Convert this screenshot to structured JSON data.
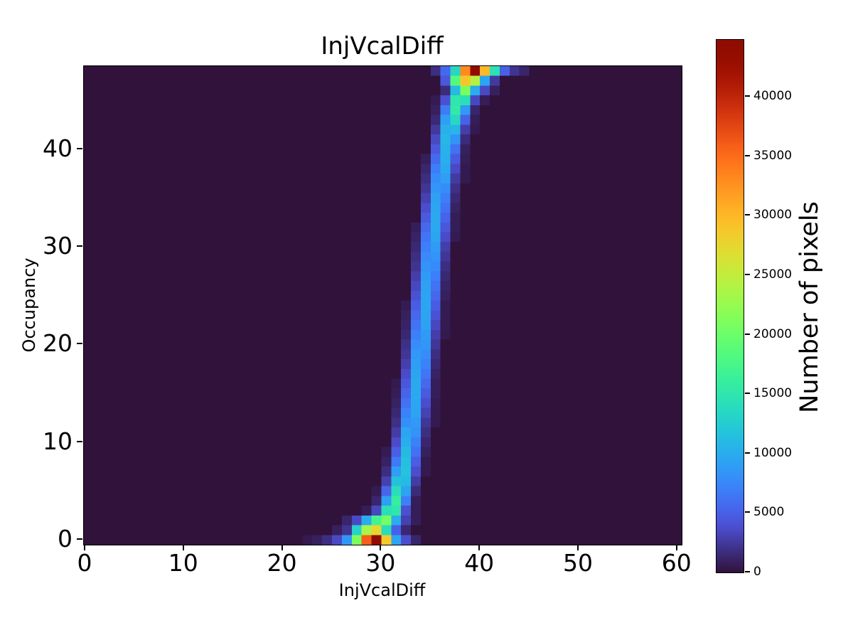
{
  "chart_data": {
    "type": "heatmap",
    "title": "InjVcalDiff",
    "xlabel": "InjVcalDiff",
    "ylabel": "Occupancy",
    "colorbar_label": "Number of pixels",
    "colormap": "turbo",
    "background_color": "#30123b",
    "vmin": 0,
    "vmax": 44800,
    "x_range": [
      0,
      60.5
    ],
    "y_range": [
      -0.5,
      48.5
    ],
    "x_ticks": [
      0,
      10,
      20,
      30,
      40,
      50,
      60
    ],
    "y_ticks": [
      0,
      10,
      20,
      30,
      40
    ],
    "colorbar_ticks": [
      0,
      5000,
      10000,
      15000,
      20000,
      25000,
      30000,
      35000,
      40000
    ],
    "rows": [
      {
        "y": 0,
        "cells": [
          [
            22,
            500
          ],
          [
            23,
            900
          ],
          [
            24,
            1800
          ],
          [
            25,
            3500
          ],
          [
            26,
            8500
          ],
          [
            27,
            21000
          ],
          [
            28,
            35800
          ],
          [
            29,
            44800
          ],
          [
            30,
            28700
          ],
          [
            31,
            9500
          ],
          [
            32,
            3800
          ],
          [
            33,
            1200
          ]
        ]
      },
      {
        "y": 1,
        "cells": [
          [
            25,
            900
          ],
          [
            26,
            2200
          ],
          [
            27,
            13000
          ],
          [
            28,
            23500
          ],
          [
            29,
            27500
          ],
          [
            30,
            14000
          ],
          [
            31,
            5000
          ],
          [
            32,
            1400
          ]
        ]
      },
      {
        "y": 2,
        "cells": [
          [
            26,
            1200
          ],
          [
            27,
            3500
          ],
          [
            28,
            10000
          ],
          [
            29,
            17000
          ],
          [
            30,
            20500
          ],
          [
            31,
            10000
          ],
          [
            32,
            3000
          ],
          [
            33,
            800
          ]
        ]
      },
      {
        "y": 3,
        "cells": [
          [
            28,
            700
          ],
          [
            29,
            3400
          ],
          [
            30,
            14300
          ],
          [
            31,
            15100
          ],
          [
            32,
            4000
          ],
          [
            33,
            700
          ]
        ]
      },
      {
        "y": 4,
        "cells": [
          [
            29,
            1300
          ],
          [
            30,
            9000
          ],
          [
            31,
            15900
          ],
          [
            32,
            7000
          ],
          [
            33,
            800
          ]
        ]
      },
      {
        "y": 5,
        "cells": [
          [
            29,
            600
          ],
          [
            30,
            5300
          ],
          [
            31,
            14100
          ],
          [
            32,
            9400
          ],
          [
            33,
            1600
          ]
        ]
      },
      {
        "y": 6,
        "cells": [
          [
            30,
            3000
          ],
          [
            31,
            11600
          ],
          [
            32,
            11100
          ],
          [
            33,
            2700
          ]
        ]
      },
      {
        "y": 7,
        "cells": [
          [
            30,
            1700
          ],
          [
            31,
            9000
          ],
          [
            32,
            11700
          ],
          [
            33,
            3800
          ],
          [
            34,
            500
          ]
        ]
      },
      {
        "y": 8,
        "cells": [
          [
            30,
            1000
          ],
          [
            31,
            6600
          ],
          [
            32,
            11400
          ],
          [
            33,
            4900
          ],
          [
            34,
            500
          ]
        ]
      },
      {
        "y": 9,
        "cells": [
          [
            30,
            600
          ],
          [
            31,
            4900
          ],
          [
            32,
            11000
          ],
          [
            33,
            6100
          ],
          [
            34,
            900
          ]
        ]
      },
      {
        "y": 10,
        "cells": [
          [
            31,
            3600
          ],
          [
            32,
            10100
          ],
          [
            33,
            7100
          ],
          [
            34,
            1300
          ]
        ]
      },
      {
        "y": 11,
        "cells": [
          [
            31,
            2700
          ],
          [
            32,
            9400
          ],
          [
            33,
            8200
          ],
          [
            34,
            1800
          ]
        ]
      },
      {
        "y": 12,
        "cells": [
          [
            31,
            1900
          ],
          [
            32,
            8100
          ],
          [
            33,
            8700
          ],
          [
            34,
            2300
          ],
          [
            35,
            500
          ]
        ]
      },
      {
        "y": 13,
        "cells": [
          [
            31,
            1400
          ],
          [
            32,
            7200
          ],
          [
            33,
            9400
          ],
          [
            34,
            3100
          ],
          [
            35,
            500
          ]
        ]
      },
      {
        "y": 14,
        "cells": [
          [
            31,
            1000
          ],
          [
            32,
            6100
          ],
          [
            33,
            9600
          ],
          [
            34,
            3800
          ],
          [
            35,
            600
          ]
        ]
      },
      {
        "y": 15,
        "cells": [
          [
            31,
            700
          ],
          [
            32,
            5200
          ],
          [
            33,
            9800
          ],
          [
            34,
            4600
          ],
          [
            35,
            800
          ]
        ]
      },
      {
        "y": 16,
        "cells": [
          [
            31,
            500
          ],
          [
            32,
            4400
          ],
          [
            33,
            9800
          ],
          [
            34,
            5500
          ],
          [
            35,
            800
          ]
        ]
      },
      {
        "y": 17,
        "cells": [
          [
            32,
            3600
          ],
          [
            33,
            9500
          ],
          [
            34,
            6400
          ],
          [
            35,
            1100
          ]
        ]
      },
      {
        "y": 18,
        "cells": [
          [
            32,
            2900
          ],
          [
            33,
            9100
          ],
          [
            34,
            7200
          ],
          [
            35,
            1400
          ]
        ]
      },
      {
        "y": 19,
        "cells": [
          [
            32,
            2300
          ],
          [
            33,
            8600
          ],
          [
            34,
            7900
          ],
          [
            35,
            1800
          ]
        ]
      },
      {
        "y": 20,
        "cells": [
          [
            32,
            1900
          ],
          [
            33,
            7900
          ],
          [
            34,
            8500
          ],
          [
            35,
            2300
          ]
        ]
      },
      {
        "y": 21,
        "cells": [
          [
            32,
            1400
          ],
          [
            33,
            7000
          ],
          [
            34,
            8800
          ],
          [
            35,
            2800
          ],
          [
            36,
            500
          ]
        ]
      },
      {
        "y": 22,
        "cells": [
          [
            32,
            1100
          ],
          [
            33,
            6200
          ],
          [
            34,
            9200
          ],
          [
            35,
            3400
          ],
          [
            36,
            560
          ]
        ]
      },
      {
        "y": 23,
        "cells": [
          [
            32,
            900
          ],
          [
            33,
            5500
          ],
          [
            34,
            9400
          ],
          [
            35,
            4100
          ],
          [
            36,
            600
          ]
        ]
      },
      {
        "y": 24,
        "cells": [
          [
            32,
            600
          ],
          [
            33,
            4800
          ],
          [
            34,
            9500
          ],
          [
            35,
            4800
          ],
          [
            36,
            600
          ]
        ]
      },
      {
        "y": 25,
        "cells": [
          [
            33,
            4100
          ],
          [
            34,
            9400
          ],
          [
            35,
            5500
          ],
          [
            36,
            900
          ]
        ]
      },
      {
        "y": 26,
        "cells": [
          [
            33,
            3400
          ],
          [
            34,
            9200
          ],
          [
            35,
            6200
          ],
          [
            36,
            1100
          ]
        ]
      },
      {
        "y": 27,
        "cells": [
          [
            33,
            2800
          ],
          [
            34,
            8800
          ],
          [
            35,
            7000
          ],
          [
            36,
            1400
          ]
        ]
      },
      {
        "y": 28,
        "cells": [
          [
            33,
            2200
          ],
          [
            34,
            8300
          ],
          [
            35,
            7700
          ],
          [
            36,
            1800
          ]
        ]
      },
      {
        "y": 29,
        "cells": [
          [
            33,
            1800
          ],
          [
            34,
            7600
          ],
          [
            35,
            8300
          ],
          [
            36,
            2300
          ]
        ]
      },
      {
        "y": 30,
        "cells": [
          [
            33,
            1400
          ],
          [
            34,
            7000
          ],
          [
            35,
            8800
          ],
          [
            36,
            2800
          ]
        ]
      },
      {
        "y": 31,
        "cells": [
          [
            33,
            1100
          ],
          [
            34,
            6400
          ],
          [
            35,
            9500
          ],
          [
            36,
            3600
          ],
          [
            37,
            600
          ]
        ]
      },
      {
        "y": 32,
        "cells": [
          [
            33,
            800
          ],
          [
            34,
            5500
          ],
          [
            35,
            9800
          ],
          [
            36,
            4400
          ],
          [
            37,
            700
          ]
        ]
      },
      {
        "y": 33,
        "cells": [
          [
            34,
            4600
          ],
          [
            35,
            9800
          ],
          [
            36,
            5200
          ],
          [
            37,
            700
          ]
        ]
      },
      {
        "y": 34,
        "cells": [
          [
            34,
            3800
          ],
          [
            35,
            9600
          ],
          [
            36,
            6100
          ],
          [
            37,
            1000
          ]
        ]
      },
      {
        "y": 35,
        "cells": [
          [
            34,
            3000
          ],
          [
            35,
            9200
          ],
          [
            36,
            7000
          ],
          [
            37,
            1400
          ]
        ]
      },
      {
        "y": 36,
        "cells": [
          [
            34,
            2300
          ],
          [
            35,
            8500
          ],
          [
            36,
            7900
          ],
          [
            37,
            1900
          ]
        ]
      },
      {
        "y": 37,
        "cells": [
          [
            34,
            1700
          ],
          [
            35,
            7900
          ],
          [
            36,
            9100
          ],
          [
            37,
            2600
          ],
          [
            38,
            500
          ]
        ]
      },
      {
        "y": 38,
        "cells": [
          [
            34,
            1300
          ],
          [
            35,
            6900
          ],
          [
            36,
            9800
          ],
          [
            37,
            3500
          ],
          [
            38,
            500
          ]
        ]
      },
      {
        "y": 39,
        "cells": [
          [
            34,
            800
          ],
          [
            35,
            5700
          ],
          [
            36,
            10200
          ],
          [
            37,
            4600
          ],
          [
            38,
            700
          ]
        ]
      },
      {
        "y": 40,
        "cells": [
          [
            35,
            4500
          ],
          [
            36,
            10400
          ],
          [
            37,
            6100
          ],
          [
            38,
            900
          ]
        ]
      },
      {
        "y": 41,
        "cells": [
          [
            35,
            3500
          ],
          [
            36,
            10800
          ],
          [
            37,
            8300
          ],
          [
            38,
            1600
          ]
        ]
      },
      {
        "y": 42,
        "cells": [
          [
            35,
            2500
          ],
          [
            36,
            10300
          ],
          [
            37,
            10700
          ],
          [
            38,
            2800
          ],
          [
            39,
            500
          ]
        ]
      },
      {
        "y": 43,
        "cells": [
          [
            35,
            1500
          ],
          [
            36,
            9100
          ],
          [
            37,
            13600
          ],
          [
            38,
            5100
          ],
          [
            39,
            700
          ]
        ]
      },
      {
        "y": 44,
        "cells": [
          [
            35,
            900
          ],
          [
            36,
            6800
          ],
          [
            37,
            15400
          ],
          [
            38,
            8800
          ],
          [
            39,
            1200
          ]
        ]
      },
      {
        "y": 45,
        "cells": [
          [
            35,
            600
          ],
          [
            36,
            4000
          ],
          [
            37,
            15100
          ],
          [
            38,
            14300
          ],
          [
            39,
            3400
          ],
          [
            40,
            700
          ]
        ]
      },
      {
        "y": 46,
        "cells": [
          [
            36,
            1600
          ],
          [
            37,
            11000
          ],
          [
            38,
            21000
          ],
          [
            39,
            10000
          ],
          [
            40,
            3500
          ],
          [
            41,
            900
          ]
        ]
      },
      {
        "y": 47,
        "cells": [
          [
            36,
            4500
          ],
          [
            37,
            18500
          ],
          [
            38,
            29000
          ],
          [
            39,
            24500
          ],
          [
            40,
            9500
          ],
          [
            41,
            2500
          ]
        ]
      },
      {
        "y": 48,
        "cells": [
          [
            35,
            1800
          ],
          [
            36,
            5500
          ],
          [
            37,
            13500
          ],
          [
            38,
            33000
          ],
          [
            39,
            44000
          ],
          [
            40,
            30000
          ],
          [
            41,
            14500
          ],
          [
            42,
            5000
          ],
          [
            43,
            2200
          ],
          [
            44,
            1200
          ]
        ]
      }
    ]
  }
}
